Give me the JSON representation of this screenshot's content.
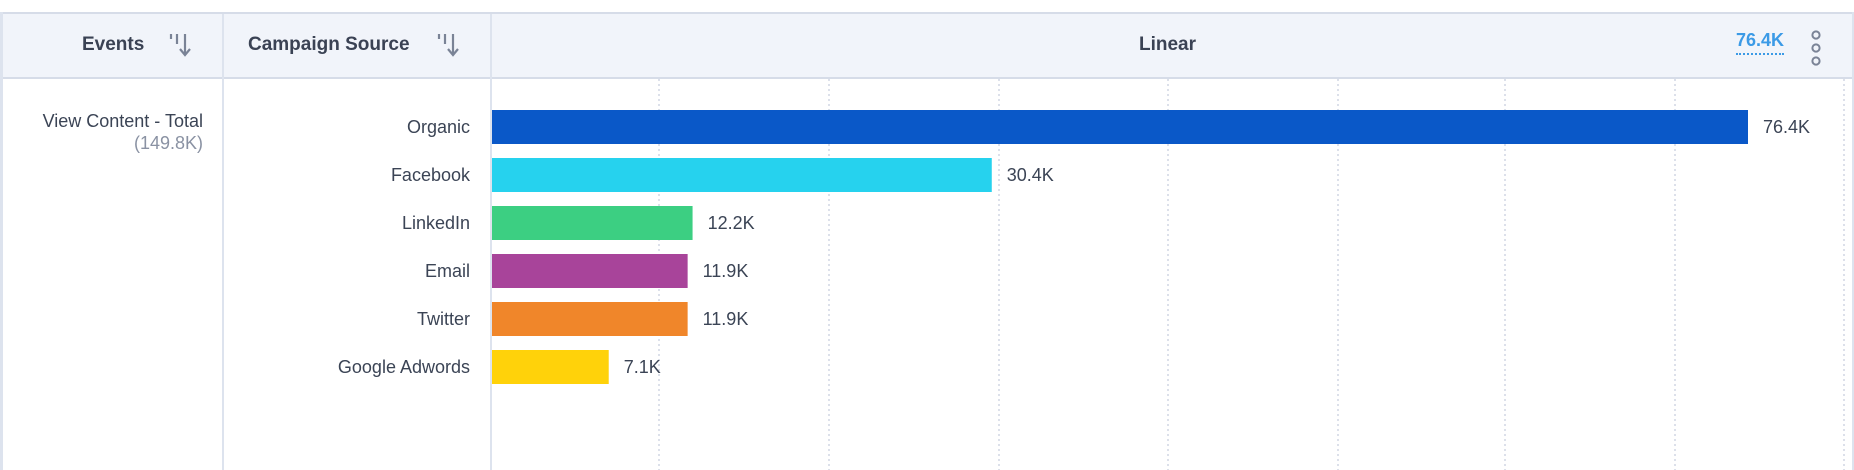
{
  "header": {
    "events_label": "Events",
    "source_label": "Campaign Source",
    "model_label": "Linear",
    "max_total": "76.4K"
  },
  "row": {
    "event_name": "View Content - Total",
    "event_total": "(149.8K)"
  },
  "chart_data": {
    "type": "bar",
    "orientation": "horizontal",
    "categories": [
      "Organic",
      "Facebook",
      "LinkedIn",
      "Email",
      "Twitter",
      "Google Adwords"
    ],
    "values": [
      76400,
      30400,
      12200,
      11900,
      11900,
      7100
    ],
    "value_labels": [
      "76.4K",
      "30.4K",
      "12.2K",
      "11.9K",
      "11.9K",
      "7.1K"
    ],
    "colors": [
      "#0a58c8",
      "#26d2ee",
      "#3ccf82",
      "#a8449a",
      "#f0862a",
      "#ffd20a"
    ],
    "title": "Linear",
    "xlim": [
      0,
      76400
    ],
    "grid": true
  }
}
